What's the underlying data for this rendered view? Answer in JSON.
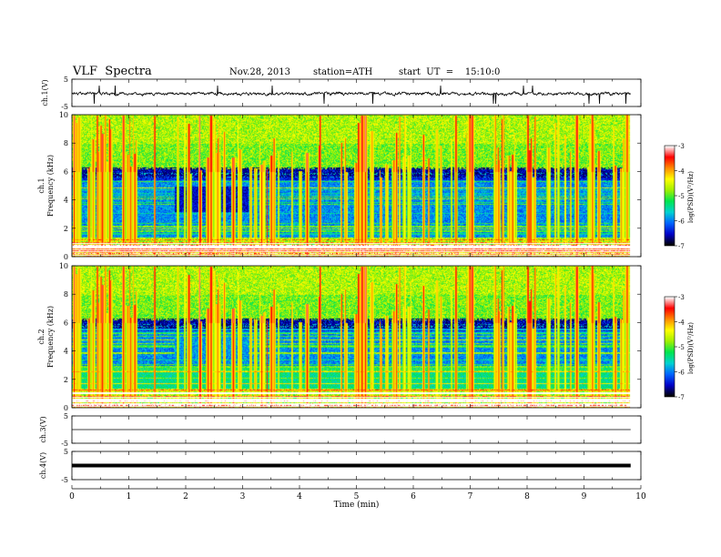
{
  "header": {
    "title": "VLF  Spectra",
    "date": "Nov.28, 2013",
    "station": "station=ATH",
    "start": "start  UT  =    15:10:0"
  },
  "colors": {
    "spectrogram_stops": [
      "#000000",
      "#0000c8",
      "#0064ff",
      "#00d2d2",
      "#00e650",
      "#a0f000",
      "#ffff00",
      "#ff8c00",
      "#ff0000",
      "#ffffff"
    ],
    "trace": "#000000"
  },
  "chart_data": [
    {
      "type": "line",
      "panel": "ch1-waveform",
      "ylabel": "ch.1(V)",
      "yticks": [
        "5",
        "-5"
      ],
      "ylim": [
        -5,
        5
      ],
      "xlim": [
        0,
        10
      ],
      "description_level": 0.3
    },
    {
      "type": "heatmap",
      "panel": "ch1-spectrogram",
      "ylabel": "ch.1 Frequency  (kHz)",
      "ylabel_line1": "ch.1",
      "ylabel_line2": "Frequency  (kHz)",
      "yticks": [
        "0",
        "2",
        "4",
        "6",
        "8",
        "10"
      ],
      "ylim": [
        0,
        10
      ],
      "xlim": [
        0,
        10
      ],
      "data_end_min": 9.8,
      "colorbar": {
        "label": "log(PSD)(V²/Hz)",
        "ticks": [
          "-3",
          "-4",
          "-5",
          "-6",
          "-7"
        ],
        "range": [
          -7,
          -3
        ]
      }
    },
    {
      "type": "heatmap",
      "panel": "ch2-spectrogram",
      "ylabel": "ch.2 Frequency  (kHz)",
      "ylabel_line1": "ch.2",
      "ylabel_line2": "Frequency  (kHz)",
      "yticks": [
        "0",
        "2",
        "4",
        "6",
        "8",
        "10"
      ],
      "ylim": [
        0,
        10
      ],
      "xlim": [
        0,
        10
      ],
      "data_end_min": 9.8,
      "colorbar": {
        "label": "log(PSD)(V²/Hz)",
        "ticks": [
          "-3",
          "-4",
          "-5",
          "-6",
          "-7"
        ],
        "range": [
          -7,
          -3
        ]
      }
    },
    {
      "type": "line",
      "panel": "ch3-waveform",
      "ylabel": "ch.3(V)",
      "yticks": [
        "5",
        "-5"
      ],
      "ylim": [
        -5,
        5
      ],
      "xlim": [
        0,
        10
      ],
      "level": 0
    },
    {
      "type": "line",
      "panel": "ch4-waveform",
      "ylabel": "ch.4(V)",
      "yticks": [
        "5",
        "-5"
      ],
      "ylim": [
        -5,
        5
      ],
      "xlim": [
        0,
        10
      ],
      "level": 0
    }
  ],
  "xaxis": {
    "label": "Time  (min)",
    "ticks": [
      "0",
      "1",
      "2",
      "3",
      "4",
      "5",
      "6",
      "7",
      "8",
      "9",
      "10"
    ],
    "range": [
      0,
      10
    ]
  }
}
